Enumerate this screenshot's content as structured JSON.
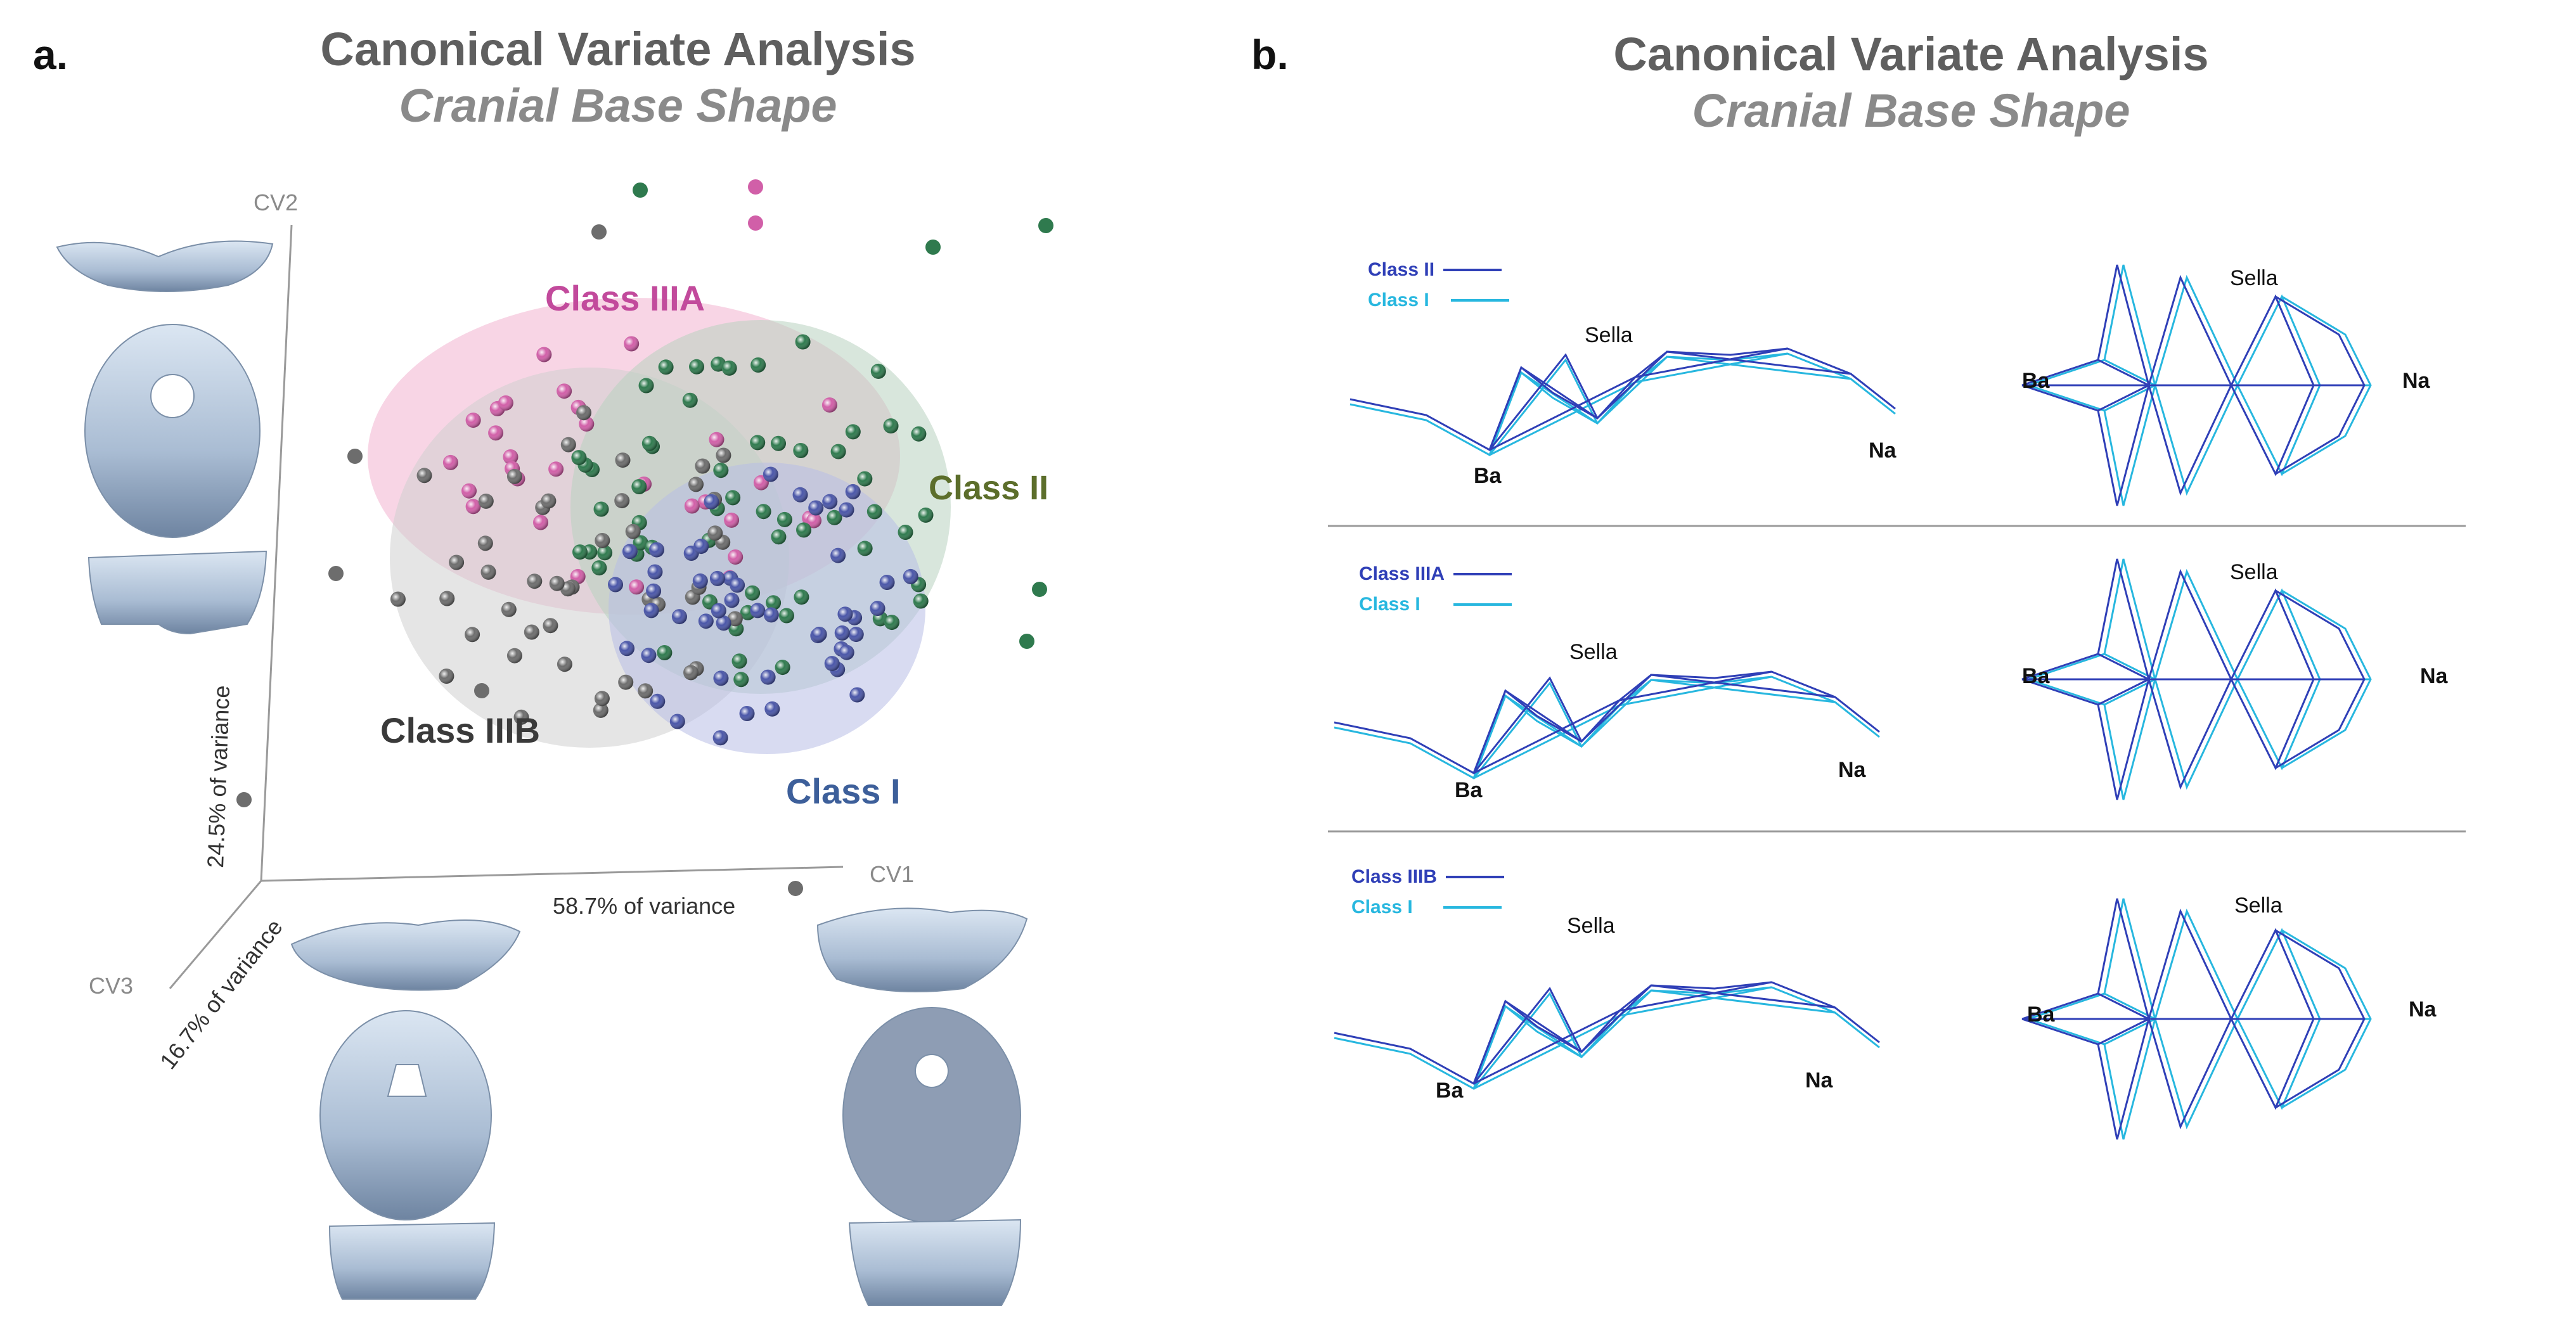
{
  "panel_a": {
    "letter": "a.",
    "title": "Canonical Variate Analysis",
    "subtitle": "Cranial Base Shape",
    "axes": {
      "cv1": "CV1",
      "cv2": "CV2",
      "cv3": "CV3",
      "cv1_variance": "58.7% of variance",
      "cv2_variance": "24.5% of variance",
      "cv3_variance": "16.7% of variance"
    },
    "groups": [
      {
        "label": "Class IIIA",
        "color": "#c24a9c"
      },
      {
        "label": "Class II",
        "color": "#5c6e2b"
      },
      {
        "label": "Class IIIB",
        "color": "#3a3a3a"
      },
      {
        "label": "Class I",
        "color": "#3d5f9a"
      }
    ]
  },
  "panel_b": {
    "letter": "b.",
    "title": "Canonical Variate Analysis",
    "subtitle": "Cranial Base Shape",
    "landmarks": {
      "ba": "Ba",
      "sella": "Sella",
      "na": "Na"
    },
    "comparisons": [
      {
        "target": "Class II",
        "reference": "Class I"
      },
      {
        "target": "Class IIIA",
        "reference": "Class I"
      },
      {
        "target": "Class IIIB",
        "reference": "Class I"
      }
    ],
    "colors": {
      "target": "#2f3fb7",
      "reference": "#27b7df"
    }
  }
}
